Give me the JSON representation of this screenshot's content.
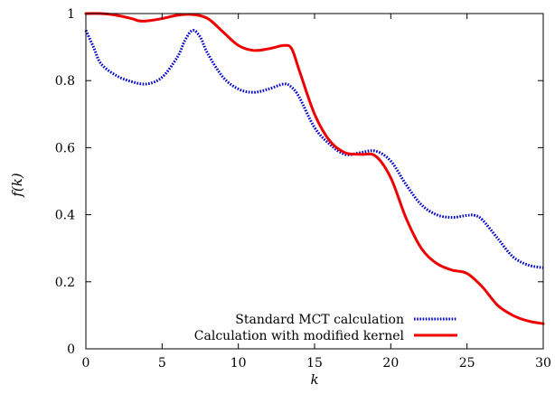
{
  "chart_data": {
    "type": "line",
    "title": "",
    "xlabel": "k",
    "ylabel": "f(k)",
    "xlim": [
      0,
      30
    ],
    "ylim": [
      0,
      1
    ],
    "xticks": [
      0,
      5,
      10,
      15,
      20,
      25,
      30
    ],
    "xtick_labels": [
      "0",
      "5",
      "10",
      "15",
      "20",
      "25",
      "30"
    ],
    "yticks": [
      0,
      0.2,
      0.4,
      0.6,
      0.8,
      1
    ],
    "ytick_labels": [
      "0",
      "0.2",
      "0.4",
      "0.6",
      "0.8",
      "1"
    ],
    "grid": false,
    "legend_position": "bottom-right",
    "series": [
      {
        "name": "Standard MCT calculation",
        "color": "#0000cc",
        "style": "dotted",
        "x": [
          0,
          0.5,
          1,
          2,
          3,
          4,
          5,
          6,
          6.5,
          7,
          7.5,
          8,
          9,
          10,
          11,
          12,
          13,
          13.5,
          14,
          15,
          16,
          17,
          18,
          19,
          20,
          21,
          22,
          23,
          24,
          25,
          25.5,
          26,
          27,
          28,
          29,
          30
        ],
        "y": [
          0.95,
          0.9,
          0.85,
          0.815,
          0.797,
          0.79,
          0.81,
          0.87,
          0.92,
          0.95,
          0.93,
          0.88,
          0.81,
          0.775,
          0.765,
          0.775,
          0.79,
          0.78,
          0.75,
          0.66,
          0.61,
          0.58,
          0.585,
          0.59,
          0.56,
          0.49,
          0.43,
          0.4,
          0.392,
          0.398,
          0.398,
          0.385,
          0.33,
          0.275,
          0.25,
          0.242
        ]
      },
      {
        "name": "Calculation with modified kernel",
        "color": "#ee0000",
        "style": "solid",
        "x": [
          0,
          1,
          2,
          3,
          3.5,
          4,
          5,
          6,
          7,
          8,
          9,
          10,
          11,
          12,
          13,
          13.5,
          14,
          15,
          16,
          17,
          18,
          19,
          20,
          21,
          22,
          23,
          24,
          25,
          26,
          27,
          28,
          29,
          30
        ],
        "y": [
          1.0,
          1.0,
          0.995,
          0.985,
          0.978,
          0.978,
          0.985,
          0.995,
          0.997,
          0.985,
          0.945,
          0.905,
          0.89,
          0.895,
          0.905,
          0.895,
          0.83,
          0.7,
          0.62,
          0.585,
          0.58,
          0.575,
          0.51,
          0.39,
          0.3,
          0.255,
          0.235,
          0.225,
          0.185,
          0.13,
          0.1,
          0.083,
          0.075
        ]
      }
    ]
  }
}
